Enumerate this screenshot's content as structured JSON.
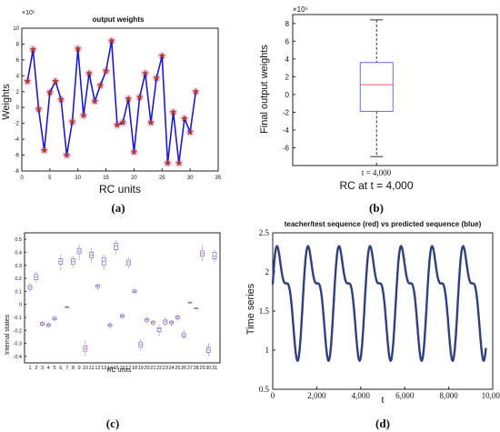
{
  "chart_data": [
    {
      "type": "line",
      "panel_label": "(a)",
      "title": "output weights",
      "xlabel": "RC units",
      "ylabel": "Weights",
      "exponent_label": "×10⁵",
      "xlim": [
        0,
        35
      ],
      "ylim": [
        -8,
        10
      ],
      "x_ticks": [
        0,
        5,
        10,
        15,
        20,
        25,
        30,
        35
      ],
      "y_ticks": [
        -8,
        -6,
        -4,
        -2,
        0,
        2,
        4,
        6,
        8,
        10
      ],
      "series": [
        {
          "x": [
            1,
            2,
            3,
            4,
            5,
            6,
            7,
            8,
            9,
            10,
            11,
            12,
            13,
            14,
            15,
            16,
            17,
            18,
            19,
            20,
            21,
            22,
            23,
            24,
            25,
            26,
            27,
            28,
            29,
            30,
            31
          ],
          "values": [
            3.3,
            7.3,
            -0.2,
            -5.4,
            1.9,
            3.3,
            1.0,
            -6.0,
            -1.8,
            7.4,
            -1.0,
            4.3,
            0.8,
            2.8,
            4.6,
            8.4,
            -2.2,
            -1.9,
            1.1,
            -5.6,
            1.3,
            4.3,
            -1.9,
            3.7,
            6.5,
            -7.0,
            -0.6,
            -7.0,
            -1.4,
            -3.1,
            2.0
          ]
        }
      ],
      "colors": {
        "line": "#1a1ad6",
        "marker": "#c0392b",
        "halo": "#f3b6e6"
      }
    },
    {
      "type": "box",
      "panel_label": "(b)",
      "ylabel": "Final output weights",
      "xlabel": "RC at t = 4,000",
      "categories": [
        "t = 4,000"
      ],
      "exponent_label": "×10⁵",
      "ylim": [
        -8,
        9
      ],
      "y_ticks": [
        -6,
        -4,
        -2,
        0,
        2,
        4,
        6,
        8
      ],
      "box": {
        "whisker_low": -7.0,
        "q1": -1.9,
        "median": 1.1,
        "q3": 3.6,
        "whisker_high": 8.4
      },
      "colors": {
        "box": "#6b6bdf",
        "median": "#e06060"
      }
    },
    {
      "type": "box",
      "panel_label": "(c)",
      "xlabel": "RC units",
      "ylabel": "Internal states",
      "ylim": [
        -0.45,
        0.55
      ],
      "y_ticks": [
        -0.4,
        -0.3,
        -0.2,
        -0.1,
        0,
        0.1,
        0.2,
        0.3,
        0.4,
        0.5
      ],
      "categories": [
        "1",
        "2",
        "3",
        "4",
        "5",
        "6",
        "7",
        "8",
        "9",
        "10",
        "11",
        "12",
        "13",
        "14",
        "15",
        "16",
        "17",
        "18",
        "19",
        "20",
        "21",
        "22",
        "23",
        "24",
        "25",
        "26",
        "27",
        "28",
        "29",
        "30",
        "31"
      ],
      "boxes": [
        {
          "median": 0.13,
          "q1": 0.115,
          "q3": 0.145,
          "low": 0.1,
          "high": 0.16
        },
        {
          "median": 0.21,
          "q1": 0.19,
          "q3": 0.23,
          "low": 0.17,
          "high": 0.25
        },
        {
          "median": -0.15,
          "q1": -0.16,
          "q3": -0.14,
          "low": -0.17,
          "high": -0.13
        },
        {
          "median": -0.16,
          "q1": -0.17,
          "q3": -0.15,
          "low": -0.18,
          "high": -0.14
        },
        {
          "median": -0.11,
          "q1": -0.12,
          "q3": -0.1,
          "low": -0.13,
          "high": -0.09
        },
        {
          "median": 0.33,
          "q1": 0.31,
          "q3": 0.35,
          "low": 0.26,
          "high": 0.38
        },
        {
          "median": -0.02,
          "q1": -0.022,
          "q3": -0.018,
          "low": -0.025,
          "high": -0.015
        },
        {
          "median": 0.33,
          "q1": 0.31,
          "q3": 0.35,
          "low": 0.28,
          "high": 0.37
        },
        {
          "median": 0.41,
          "q1": 0.39,
          "q3": 0.43,
          "low": 0.34,
          "high": 0.46
        },
        {
          "median": -0.34,
          "q1": -0.36,
          "q3": -0.32,
          "low": -0.4,
          "high": -0.28
        },
        {
          "median": 0.38,
          "q1": 0.36,
          "q3": 0.4,
          "low": 0.32,
          "high": 0.43
        },
        {
          "median": 0.14,
          "q1": 0.13,
          "q3": 0.15,
          "low": 0.11,
          "high": 0.16
        },
        {
          "median": 0.33,
          "q1": 0.3,
          "q3": 0.36,
          "low": 0.26,
          "high": 0.38
        },
        {
          "median": -0.16,
          "q1": -0.17,
          "q3": -0.15,
          "low": -0.19,
          "high": -0.14
        },
        {
          "median": 0.45,
          "q1": 0.42,
          "q3": 0.47,
          "low": 0.38,
          "high": 0.49
        },
        {
          "median": -0.09,
          "q1": -0.1,
          "q3": -0.08,
          "low": -0.11,
          "high": -0.07
        },
        {
          "median": 0.32,
          "q1": 0.3,
          "q3": 0.34,
          "low": 0.27,
          "high": 0.36
        },
        {
          "median": 0.1,
          "q1": 0.09,
          "q3": 0.11,
          "low": 0.08,
          "high": 0.12
        },
        {
          "median": -0.31,
          "q1": -0.33,
          "q3": -0.29,
          "low": -0.36,
          "high": -0.27
        },
        {
          "median": -0.12,
          "q1": -0.13,
          "q3": -0.11,
          "low": -0.15,
          "high": -0.1
        },
        {
          "median": -0.14,
          "q1": -0.15,
          "q3": -0.13,
          "low": -0.17,
          "high": -0.12
        },
        {
          "median": -0.19,
          "q1": -0.21,
          "q3": -0.18,
          "low": -0.24,
          "high": -0.16
        },
        {
          "median": -0.13,
          "q1": -0.15,
          "q3": -0.12,
          "low": -0.17,
          "high": -0.1
        },
        {
          "median": -0.14,
          "q1": -0.15,
          "q3": -0.13,
          "low": -0.17,
          "high": -0.12
        },
        {
          "median": -0.1,
          "q1": -0.11,
          "q3": -0.09,
          "low": -0.13,
          "high": -0.08
        },
        {
          "median": -0.24,
          "q1": -0.25,
          "q3": -0.22,
          "low": -0.27,
          "high": -0.2
        },
        {
          "median": 0.015,
          "q1": 0.013,
          "q3": 0.017,
          "low": 0.01,
          "high": 0.02
        },
        {
          "median": -0.03,
          "q1": -0.032,
          "q3": -0.028,
          "low": -0.035,
          "high": -0.025
        },
        {
          "median": 0.39,
          "q1": 0.37,
          "q3": 0.41,
          "low": 0.33,
          "high": 0.45
        },
        {
          "median": -0.35,
          "q1": -0.37,
          "q3": -0.33,
          "low": -0.4,
          "high": -0.3
        },
        {
          "median": 0.37,
          "q1": 0.35,
          "q3": 0.4,
          "low": 0.32,
          "high": 0.42
        }
      ],
      "colors": {
        "box": "#6b6bdf",
        "median": "#e06060"
      }
    },
    {
      "type": "line",
      "panel_label": "(d)",
      "title": "teacher/test sequence (red) vs predicted sequence (blue)",
      "xlabel": "t",
      "ylabel": "Time series",
      "xlim": [
        0,
        10000
      ],
      "ylim": [
        0.5,
        2.5
      ],
      "x_ticks": [
        0,
        2000,
        4000,
        6000,
        8000,
        10000
      ],
      "x_tick_labels": [
        "0",
        "2,000",
        "4,000",
        "6,000",
        "8,000",
        "10,000"
      ],
      "y_ticks": [
        0.5,
        1,
        1.5,
        2,
        2.5
      ],
      "series": [
        {
          "x_range": [
            0,
            9700
          ],
          "period": 1410,
          "peaks_high": 2.35,
          "peaks_low": 2.18,
          "troughs_low": 0.82,
          "troughs_high": 1.38,
          "color": "#2f3f7f"
        }
      ]
    }
  ]
}
